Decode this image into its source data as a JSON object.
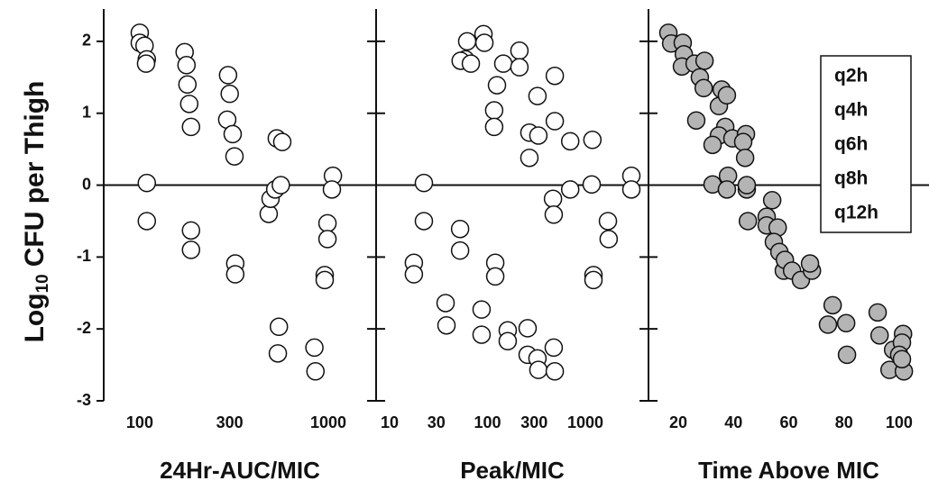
{
  "chart_data": [
    {
      "type": "scatter",
      "xlabel": "24Hr-AUC/MIC",
      "ylabel": {
        "base": "Log",
        "subscript": "10",
        "rest": "CFU per Thigh"
      },
      "log_x": true,
      "marker_color": "#ffffff",
      "xlim": [
        64.4,
        1793
      ],
      "xticks": [
        100,
        300,
        1000
      ],
      "ylim": [
        -3,
        2.45
      ],
      "yticks": [
        2,
        1,
        0,
        -1,
        -2,
        -3
      ],
      "zero_line": true,
      "x": [
        100,
        100,
        106,
        109,
        108,
        109,
        109,
        173,
        177,
        179,
        183,
        187,
        187,
        187,
        294,
        300,
        291,
        311,
        318,
        321,
        321,
        533,
        570,
        483,
        494,
        523,
        560,
        547,
        540,
        844,
        855,
        1058,
        1045,
        990,
        990,
        957,
        957
      ],
      "y": [
        2.12,
        1.98,
        1.94,
        1.75,
        1.69,
        0.03,
        -0.5,
        1.85,
        1.67,
        1.4,
        1.13,
        0.81,
        -0.63,
        -0.9,
        1.53,
        1.27,
        0.91,
        0.71,
        0.4,
        -1.09,
        -1.24,
        0.65,
        0.6,
        -0.4,
        -0.19,
        -0.06,
        0.0,
        -1.97,
        -2.34,
        -2.26,
        -2.59,
        0.13,
        -0.06,
        -0.53,
        -0.75,
        -1.25,
        -1.32
      ]
    },
    {
      "type": "scatter",
      "xlabel": "Peak/MIC",
      "log_x": true,
      "marker_color": "#ffffff",
      "xlim": [
        7.28,
        4414
      ],
      "xticks": [
        10,
        30,
        100,
        300,
        1000
      ],
      "ylim": [
        -3,
        2.45
      ],
      "zero_line": true,
      "x": [
        59.4,
        53.2,
        62,
        67.6,
        91,
        93,
        117,
        125,
        117,
        145,
        212,
        212,
        268,
        324,
        331,
        487,
        487,
        700,
        1180,
        268,
        22.4,
        22.4,
        17.7,
        17.7,
        52.5,
        52.5,
        120,
        120,
        37.3,
        38.1,
        87,
        87,
        161,
        161,
        257,
        257,
        324,
        331,
        475,
        487,
        467,
        475,
        700,
        1160,
        1700,
        1730,
        1210,
        1210,
        2950,
        2950
      ],
      "y": [
        1.75,
        1.73,
        2.0,
        1.69,
        2.1,
        1.98,
        1.04,
        1.39,
        0.81,
        1.69,
        1.87,
        1.64,
        0.73,
        1.24,
        0.69,
        1.52,
        0.89,
        0.61,
        0.63,
        0.38,
        0.03,
        -0.5,
        -1.08,
        -1.24,
        -0.61,
        -0.91,
        -1.08,
        -1.27,
        -1.64,
        -1.95,
        -1.73,
        -2.08,
        -2.02,
        -2.17,
        -1.99,
        -2.36,
        -2.41,
        -2.57,
        -2.26,
        -2.59,
        -0.19,
        -0.41,
        -0.06,
        0.01,
        -0.5,
        -0.75,
        -1.25,
        -1.32,
        0.13,
        -0.06
      ]
    },
    {
      "type": "scatter",
      "xlabel": "Time Above MIC",
      "log_x": false,
      "marker_color": "#b4b4b4",
      "xlim": [
        9.2,
        110.8
      ],
      "xticks": [
        20,
        40,
        60,
        80,
        100
      ],
      "ylim": [
        -3,
        2.45
      ],
      "zero_line": true,
      "legend_labels": [
        "q2h",
        "q4h",
        "q6h",
        "q8h",
        "q12h"
      ],
      "x": [
        16.4,
        17.4,
        21.6,
        22,
        21.3,
        25.9,
        27.8,
        29.5,
        29.2,
        35.7,
        34.7,
        37.6,
        37,
        34.7,
        26.5,
        32.4,
        39.6,
        44.5,
        43.5,
        44.2,
        32.4,
        38,
        37.6,
        44.8,
        44.8,
        45.2,
        54,
        52,
        52,
        56,
        54.6,
        56.6,
        58.2,
        58.6,
        61.2,
        64.4,
        68.4,
        67.7,
        75.9,
        74.2,
        80.8,
        81.1,
        92.2,
        92.9,
        97.8,
        101.4,
        101,
        100,
        96.5,
        101.7,
        101
      ],
      "y": [
        2.12,
        1.97,
        1.98,
        1.82,
        1.65,
        1.69,
        1.5,
        1.73,
        1.35,
        1.33,
        1.1,
        1.25,
        0.81,
        0.69,
        0.9,
        0.56,
        0.65,
        0.71,
        0.6,
        0.38,
        0.01,
        0.13,
        -0.06,
        -0.06,
        0.0,
        -0.5,
        -0.21,
        -0.44,
        -0.56,
        -0.59,
        -0.79,
        -0.93,
        -1.19,
        -1.04,
        -1.19,
        -1.32,
        -1.19,
        -1.09,
        -1.67,
        -1.94,
        -1.92,
        -2.36,
        -1.77,
        -2.09,
        -2.29,
        -2.07,
        -2.19,
        -2.36,
        -2.57,
        -2.59,
        -2.42
      ]
    }
  ]
}
